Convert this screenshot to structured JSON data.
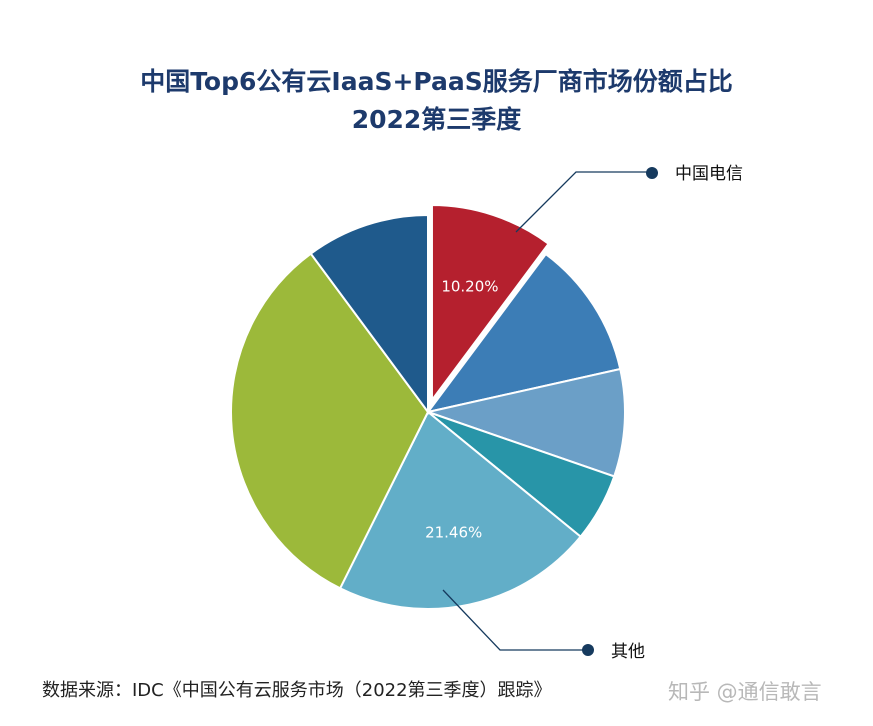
{
  "chart_data": {
    "type": "pie",
    "title": "中国Top6公有云IaaS+PaaS服务厂商市场份额占比",
    "subtitle": "2022第三季度",
    "slices": [
      {
        "name": "中国电信",
        "value": 10.2,
        "label": "10.20%",
        "color": "#b5202e",
        "exploded": true,
        "callout": true
      },
      {
        "name": "",
        "value": 11.3,
        "label": "",
        "color": "#3c7db6"
      },
      {
        "name": "",
        "value": 8.8,
        "label": "",
        "color": "#6b9fc7"
      },
      {
        "name": "",
        "value": 5.6,
        "label": "",
        "color": "#2895a8"
      },
      {
        "name": "其他",
        "value": 21.46,
        "label": "21.46%",
        "color": "#62aec8",
        "callout": true
      },
      {
        "name": "",
        "value": 32.5,
        "label": "",
        "color": "#9cb93a"
      },
      {
        "name": "",
        "value": 10.14,
        "label": "",
        "color": "#1f5a8c"
      }
    ],
    "start_angle": "top",
    "direction": "clockwise",
    "legend": "callouts"
  },
  "footer": {
    "source": "数据来源：IDC《中国公有云服务市场（2022第三季度）跟踪》",
    "watermark": "知乎 @通信敢言"
  }
}
